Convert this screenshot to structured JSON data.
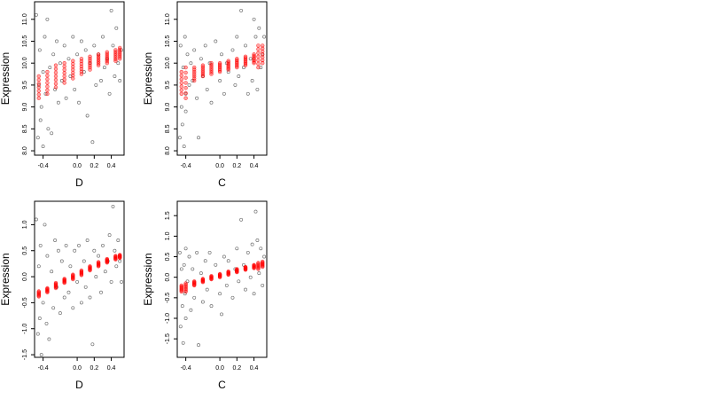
{
  "chart_data": [
    {
      "type": "scatter",
      "xlabel": "D",
      "ylabel": "Expression",
      "xlim": [
        -0.5,
        0.55
      ],
      "ylim": [
        7.9,
        11.4
      ],
      "xticks": [
        -0.4,
        0.0,
        0.2,
        0.4
      ],
      "xtick_labels": [
        "-0.4",
        "0.0",
        "0.2",
        "0.4"
      ],
      "yticks": [
        8.0,
        8.5,
        9.0,
        9.5,
        10.0,
        10.5,
        11.0
      ],
      "ytick_labels": [
        "8.0",
        "8.5",
        "9.0",
        "9.5",
        "10.0",
        "10.5",
        "11.0"
      ],
      "observed_color": "#000000",
      "fitted_color": "#ff0000",
      "fitted_groups": [
        {
          "x": -0.45,
          "y": [
            9.2,
            9.7
          ]
        },
        {
          "x": -0.35,
          "y": [
            9.3,
            9.8
          ]
        },
        {
          "x": -0.25,
          "y": [
            9.45,
            9.95
          ]
        },
        {
          "x": -0.15,
          "y": [
            9.55,
            10.0
          ]
        },
        {
          "x": -0.05,
          "y": [
            9.65,
            10.05
          ]
        },
        {
          "x": 0.05,
          "y": [
            9.75,
            10.1
          ]
        },
        {
          "x": 0.15,
          "y": [
            9.85,
            10.15
          ]
        },
        {
          "x": 0.25,
          "y": [
            9.95,
            10.2
          ]
        },
        {
          "x": 0.35,
          "y": [
            10.0,
            10.25
          ]
        },
        {
          "x": 0.45,
          "y": [
            10.05,
            10.3
          ]
        },
        {
          "x": 0.5,
          "y": [
            10.1,
            10.35
          ]
        }
      ],
      "observed_points": [
        [
          -0.48,
          11.1
        ],
        [
          -0.46,
          8.3
        ],
        [
          -0.45,
          9.5
        ],
        [
          -0.44,
          10.3
        ],
        [
          -0.43,
          8.7
        ],
        [
          -0.42,
          9.0
        ],
        [
          -0.4,
          9.8
        ],
        [
          -0.4,
          8.1
        ],
        [
          -0.38,
          10.6
        ],
        [
          -0.37,
          9.3
        ],
        [
          -0.35,
          11.0
        ],
        [
          -0.34,
          8.5
        ],
        [
          -0.32,
          9.9
        ],
        [
          -0.3,
          8.4
        ],
        [
          -0.28,
          10.2
        ],
        [
          -0.26,
          9.4
        ],
        [
          -0.24,
          10.5
        ],
        [
          -0.22,
          9.1
        ],
        [
          -0.2,
          10.0
        ],
        [
          -0.18,
          9.6
        ],
        [
          -0.15,
          10.4
        ],
        [
          -0.13,
          9.2
        ],
        [
          -0.1,
          10.1
        ],
        [
          -0.08,
          9.7
        ],
        [
          -0.05,
          10.6
        ],
        [
          -0.03,
          9.4
        ],
        [
          0.0,
          10.2
        ],
        [
          0.02,
          9.1
        ],
        [
          0.05,
          10.5
        ],
        [
          0.08,
          9.8
        ],
        [
          0.1,
          10.3
        ],
        [
          0.12,
          8.8
        ],
        [
          0.15,
          10.0
        ],
        [
          0.18,
          8.2
        ],
        [
          0.2,
          10.4
        ],
        [
          0.22,
          9.5
        ],
        [
          0.25,
          10.2
        ],
        [
          0.28,
          9.6
        ],
        [
          0.3,
          10.6
        ],
        [
          0.32,
          9.9
        ],
        [
          0.35,
          10.1
        ],
        [
          0.38,
          9.3
        ],
        [
          0.4,
          11.2
        ],
        [
          0.42,
          10.4
        ],
        [
          0.44,
          9.7
        ],
        [
          0.46,
          10.8
        ],
        [
          0.48,
          10.0
        ],
        [
          0.5,
          9.6
        ],
        [
          0.52,
          10.3
        ]
      ]
    },
    {
      "type": "scatter",
      "xlabel": "C",
      "ylabel": "Expression",
      "xlim": [
        -0.5,
        0.55
      ],
      "ylim": [
        7.9,
        11.4
      ],
      "xticks": [
        -0.4,
        0.0,
        0.2,
        0.4
      ],
      "xtick_labels": [
        "-0.4",
        "0.0",
        "0.2",
        "0.4"
      ],
      "yticks": [
        8.0,
        8.5,
        9.0,
        9.5,
        10.0,
        10.5,
        11.0
      ],
      "ytick_labels": [
        "8.0",
        "8.5",
        "9.0",
        "9.5",
        "10.0",
        "10.5",
        "11.0"
      ],
      "observed_color": "#000000",
      "fitted_color": "#ff0000",
      "fitted_groups": [
        {
          "x": -0.45,
          "y": [
            9.3,
            9.8
          ]
        },
        {
          "x": -0.4,
          "y": [
            9.2,
            9.9
          ]
        },
        {
          "x": -0.3,
          "y": [
            9.6,
            9.9
          ]
        },
        {
          "x": -0.2,
          "y": [
            9.7,
            9.95
          ]
        },
        {
          "x": -0.1,
          "y": [
            9.75,
            10.0
          ]
        },
        {
          "x": 0.0,
          "y": [
            9.8,
            10.0
          ]
        },
        {
          "x": 0.1,
          "y": [
            9.85,
            10.05
          ]
        },
        {
          "x": 0.2,
          "y": [
            9.9,
            10.1
          ]
        },
        {
          "x": 0.3,
          "y": [
            9.95,
            10.15
          ]
        },
        {
          "x": 0.4,
          "y": [
            10.0,
            10.2
          ]
        },
        {
          "x": 0.45,
          "y": [
            9.9,
            10.4
          ]
        },
        {
          "x": 0.5,
          "y": [
            10.0,
            10.4
          ]
        }
      ],
      "observed_points": [
        [
          -0.47,
          8.3
        ],
        [
          -0.46,
          10.4
        ],
        [
          -0.45,
          9.0
        ],
        [
          -0.44,
          8.6
        ],
        [
          -0.43,
          9.9
        ],
        [
          -0.42,
          8.1
        ],
        [
          -0.41,
          10.6
        ],
        [
          -0.4,
          9.3
        ],
        [
          -0.4,
          8.9
        ],
        [
          -0.38,
          10.2
        ],
        [
          -0.36,
          9.5
        ],
        [
          -0.34,
          10.0
        ],
        [
          -0.32,
          9.6
        ],
        [
          -0.3,
          10.3
        ],
        [
          -0.27,
          9.2
        ],
        [
          -0.25,
          8.3
        ],
        [
          -0.22,
          10.1
        ],
        [
          -0.2,
          9.7
        ],
        [
          -0.17,
          10.4
        ],
        [
          -0.15,
          9.4
        ],
        [
          -0.12,
          10.0
        ],
        [
          -0.1,
          9.1
        ],
        [
          -0.05,
          10.5
        ],
        [
          0.0,
          9.6
        ],
        [
          0.02,
          10.2
        ],
        [
          0.05,
          9.3
        ],
        [
          0.08,
          10.0
        ],
        [
          0.1,
          9.8
        ],
        [
          0.15,
          10.3
        ],
        [
          0.18,
          9.5
        ],
        [
          0.2,
          10.6
        ],
        [
          0.22,
          9.7
        ],
        [
          0.25,
          11.2
        ],
        [
          0.28,
          9.9
        ],
        [
          0.3,
          10.4
        ],
        [
          0.33,
          9.3
        ],
        [
          0.36,
          10.1
        ],
        [
          0.38,
          9.6
        ],
        [
          0.4,
          11.0
        ],
        [
          0.42,
          10.6
        ],
        [
          0.44,
          9.4
        ],
        [
          0.46,
          10.8
        ],
        [
          0.48,
          9.9
        ],
        [
          0.5,
          10.2
        ],
        [
          0.52,
          10.6
        ]
      ]
    },
    {
      "type": "scatter",
      "xlabel": "D",
      "ylabel": "Expression",
      "xlim": [
        -0.5,
        0.55
      ],
      "ylim": [
        -1.55,
        1.45
      ],
      "xticks": [
        -0.4,
        0.0,
        0.2,
        0.4
      ],
      "xtick_labels": [
        "-0.4",
        "0.0",
        "0.2",
        "0.4"
      ],
      "yticks": [
        -1.5,
        -1.0,
        -0.5,
        0.0,
        0.5,
        1.0
      ],
      "ytick_labels": [
        "-1.5",
        "-1.0",
        "-0.5",
        "0.0",
        "0.5",
        "1.0"
      ],
      "observed_color": "#000000",
      "fitted_color": "#ff0000",
      "fitted_groups": [
        {
          "x": -0.45,
          "y": [
            -0.38,
            -0.28
          ]
        },
        {
          "x": -0.35,
          "y": [
            -0.3,
            -0.22
          ]
        },
        {
          "x": -0.25,
          "y": [
            -0.22,
            -0.12
          ]
        },
        {
          "x": -0.15,
          "y": [
            -0.12,
            -0.04
          ]
        },
        {
          "x": -0.05,
          "y": [
            -0.05,
            0.04
          ]
        },
        {
          "x": 0.05,
          "y": [
            0.03,
            0.12
          ]
        },
        {
          "x": 0.15,
          "y": [
            0.12,
            0.2
          ]
        },
        {
          "x": 0.25,
          "y": [
            0.2,
            0.28
          ]
        },
        {
          "x": 0.35,
          "y": [
            0.27,
            0.34
          ]
        },
        {
          "x": 0.45,
          "y": [
            0.33,
            0.4
          ]
        },
        {
          "x": 0.5,
          "y": [
            0.36,
            0.42
          ]
        }
      ],
      "observed_points": [
        [
          -0.48,
          1.1
        ],
        [
          -0.46,
          -1.1
        ],
        [
          -0.45,
          0.2
        ],
        [
          -0.44,
          -0.8
        ],
        [
          -0.43,
          0.6
        ],
        [
          -0.42,
          -1.5
        ],
        [
          -0.4,
          -0.5
        ],
        [
          -0.38,
          1.0
        ],
        [
          -0.36,
          -0.9
        ],
        [
          -0.35,
          0.4
        ],
        [
          -0.33,
          -1.2
        ],
        [
          -0.3,
          0.1
        ],
        [
          -0.28,
          -0.6
        ],
        [
          -0.26,
          0.7
        ],
        [
          -0.24,
          -0.2
        ],
        [
          -0.22,
          0.5
        ],
        [
          -0.2,
          -0.7
        ],
        [
          -0.18,
          0.3
        ],
        [
          -0.15,
          -0.4
        ],
        [
          -0.13,
          0.6
        ],
        [
          -0.1,
          -0.3
        ],
        [
          -0.08,
          0.2
        ],
        [
          -0.05,
          -0.6
        ],
        [
          -0.03,
          0.5
        ],
        [
          0.0,
          -0.1
        ],
        [
          0.02,
          0.6
        ],
        [
          0.05,
          -0.5
        ],
        [
          0.08,
          0.3
        ],
        [
          0.1,
          -0.2
        ],
        [
          0.12,
          0.7
        ],
        [
          0.15,
          -0.4
        ],
        [
          0.18,
          -1.3
        ],
        [
          0.2,
          0.5
        ],
        [
          0.22,
          0.0
        ],
        [
          0.25,
          0.4
        ],
        [
          0.28,
          -0.3
        ],
        [
          0.3,
          0.6
        ],
        [
          0.33,
          0.1
        ],
        [
          0.36,
          0.3
        ],
        [
          0.38,
          0.8
        ],
        [
          0.4,
          -0.1
        ],
        [
          0.42,
          1.35
        ],
        [
          0.44,
          0.5
        ],
        [
          0.46,
          0.2
        ],
        [
          0.48,
          0.7
        ],
        [
          0.5,
          0.3
        ],
        [
          0.52,
          -0.1
        ]
      ]
    },
    {
      "type": "scatter",
      "xlabel": "C",
      "ylabel": "Expression",
      "xlim": [
        -0.5,
        0.55
      ],
      "ylim": [
        -1.95,
        1.85
      ],
      "xticks": [
        -0.4,
        0.0,
        0.2,
        0.4
      ],
      "xtick_labels": [
        "-0.4",
        "0.0",
        "0.2",
        "0.4"
      ],
      "yticks": [
        -1.5,
        -1.0,
        -0.5,
        0.0,
        0.5,
        1.0,
        1.5
      ],
      "ytick_labels": [
        "-1.5",
        "-1.0",
        "-0.5",
        "0.0",
        "0.5",
        "1.0",
        "1.5"
      ],
      "observed_color": "#000000",
      "fitted_color": "#ff0000",
      "fitted_groups": [
        {
          "x": -0.45,
          "y": [
            -0.35,
            -0.2
          ]
        },
        {
          "x": -0.4,
          "y": [
            -0.35,
            -0.15
          ]
        },
        {
          "x": -0.3,
          "y": [
            -0.2,
            -0.1
          ]
        },
        {
          "x": -0.2,
          "y": [
            -0.12,
            -0.04
          ]
        },
        {
          "x": -0.1,
          "y": [
            -0.05,
            0.03
          ]
        },
        {
          "x": 0.0,
          "y": [
            0.0,
            0.08
          ]
        },
        {
          "x": 0.1,
          "y": [
            0.06,
            0.14
          ]
        },
        {
          "x": 0.2,
          "y": [
            0.12,
            0.2
          ]
        },
        {
          "x": 0.3,
          "y": [
            0.18,
            0.25
          ]
        },
        {
          "x": 0.4,
          "y": [
            0.22,
            0.3
          ]
        },
        {
          "x": 0.45,
          "y": [
            0.2,
            0.35
          ]
        },
        {
          "x": 0.5,
          "y": [
            0.25,
            0.38
          ]
        }
      ],
      "observed_points": [
        [
          -0.47,
          0.6
        ],
        [
          -0.46,
          -1.2
        ],
        [
          -0.45,
          0.2
        ],
        [
          -0.44,
          -0.7
        ],
        [
          -0.43,
          -1.6
        ],
        [
          -0.42,
          0.3
        ],
        [
          -0.41,
          -0.4
        ],
        [
          -0.4,
          -1.0
        ],
        [
          -0.4,
          0.7
        ],
        [
          -0.38,
          -0.1
        ],
        [
          -0.36,
          0.5
        ],
        [
          -0.34,
          -0.8
        ],
        [
          -0.32,
          0.2
        ],
        [
          -0.3,
          -0.5
        ],
        [
          -0.27,
          0.6
        ],
        [
          -0.25,
          -1.65
        ],
        [
          -0.22,
          0.1
        ],
        [
          -0.2,
          -0.6
        ],
        [
          -0.17,
          0.4
        ],
        [
          -0.15,
          -0.3
        ],
        [
          -0.12,
          0.6
        ],
        [
          -0.1,
          -0.7
        ],
        [
          -0.05,
          0.3
        ],
        [
          0.0,
          -0.4
        ],
        [
          0.02,
          -0.9
        ],
        [
          0.05,
          0.5
        ],
        [
          0.08,
          -0.2
        ],
        [
          0.1,
          0.4
        ],
        [
          0.15,
          -0.5
        ],
        [
          0.18,
          0.2
        ],
        [
          0.2,
          0.7
        ],
        [
          0.22,
          -0.1
        ],
        [
          0.25,
          1.4
        ],
        [
          0.28,
          0.3
        ],
        [
          0.3,
          -0.3
        ],
        [
          0.33,
          0.6
        ],
        [
          0.36,
          0.0
        ],
        [
          0.38,
          0.8
        ],
        [
          0.4,
          -0.4
        ],
        [
          0.42,
          1.6
        ],
        [
          0.44,
          0.9
        ],
        [
          0.46,
          0.1
        ],
        [
          0.48,
          0.7
        ],
        [
          0.5,
          -0.2
        ],
        [
          0.52,
          0.5
        ]
      ]
    }
  ]
}
